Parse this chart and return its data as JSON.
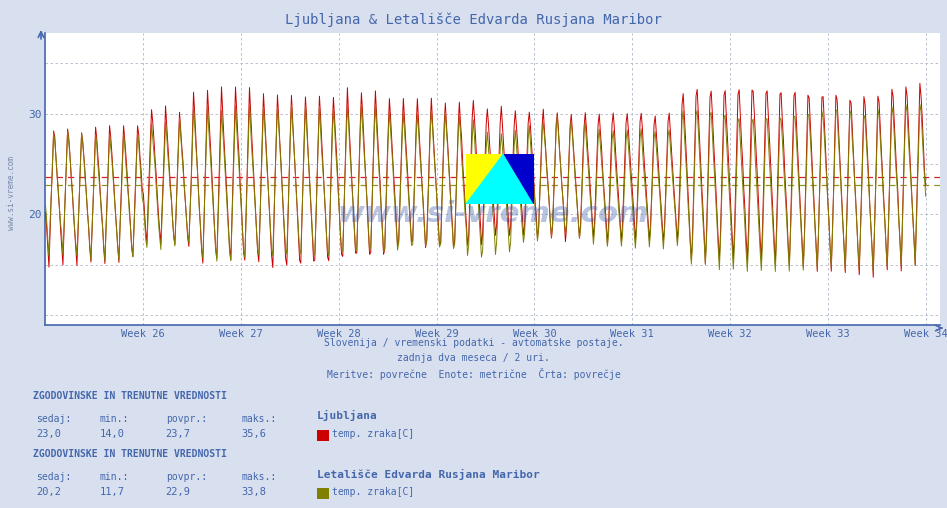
{
  "title": "Ljubljana & Letališče Edvarda Rusjana Maribor",
  "subtitle_lines": [
    "Slovenija / vremenski podatki - avtomatske postaje.",
    "zadnja dva meseca / 2 uri.",
    "Meritve: povrečne  Enote: metrične  Črta: povrečje"
  ],
  "x_label_weeks": [
    "Week 26",
    "Week 27",
    "Week 28",
    "Week 29",
    "Week 30",
    "Week 31",
    "Week 32",
    "Week 33",
    "Week 34"
  ],
  "y_ticks": [
    20,
    30
  ],
  "y_min": 10,
  "y_max": 37,
  "avg_ljubljana": 23.7,
  "avg_maribor": 22.9,
  "color_ljubljana": "#cc0000",
  "color_maribor": "#808000",
  "bg_color": "#d8e0f0",
  "plot_bg_color": "#ffffff",
  "grid_color": "#b0b8c8",
  "axis_color": "#4466aa",
  "title_color": "#4466aa",
  "text_color": "#4466aa",
  "label1_title": "Ljubljana",
  "label1_color": "#cc0000",
  "label1_sedaj": "23,0",
  "label1_min": "14,0",
  "label1_povpr": "23,7",
  "label1_maks": "35,6",
  "label2_title": "Letališče Edvarda Rusjana Maribor",
  "label2_color": "#808000",
  "label2_sedaj": "20,2",
  "label2_min": "11,7",
  "label2_povpr": "22,9",
  "label2_maks": "33,8",
  "n_weeks": 9,
  "points_per_week": 84,
  "week_start": 25,
  "week_end": 34
}
